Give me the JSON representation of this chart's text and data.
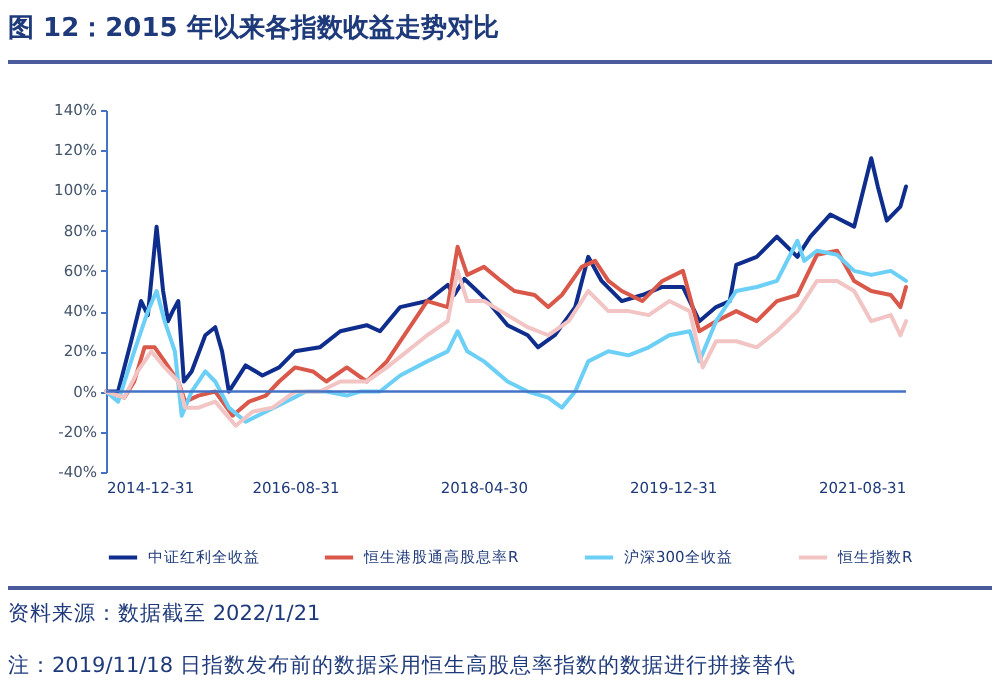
{
  "chart_data": {
    "type": "line",
    "title": "图 12：2015 年以来各指数收益走势对比",
    "annotations": [
      "资料来源：数据截至 2022/1/21",
      "注：2019/11/18 日指数发布前的数据采用恒生高股息率指数的数据进行拼接替代"
    ],
    "xlim": [
      "2014-12-31",
      "2022-01-21"
    ],
    "xticks": [
      "2014-12-31",
      "2016-08-31",
      "2018-04-30",
      "2019-12-31",
      "2021-08-31"
    ],
    "ylim": [
      -40,
      140
    ],
    "yticks": [
      {
        "value": -40,
        "label": "-40%"
      },
      {
        "value": -20,
        "label": "-20%"
      },
      {
        "value": 0,
        "label": "0%"
      },
      {
        "value": 20,
        "label": "20%"
      },
      {
        "value": 40,
        "label": "40%"
      },
      {
        "value": 60,
        "label": "60%"
      },
      {
        "value": 80,
        "label": "80%"
      },
      {
        "value": 100,
        "label": "100%"
      },
      {
        "value": 120,
        "label": "120%"
      },
      {
        "value": 140,
        "label": "140%"
      }
    ],
    "ref_lines": [
      {
        "axis": "y",
        "value": 0,
        "color": "#4472c4"
      }
    ],
    "grid": false,
    "legend": "bottom",
    "line_style": "solid",
    "series": [
      {
        "name": "中证红利全收益",
        "color": "#0f2d8c",
        "x": [
          "2014-12-31",
          "2015-02-08",
          "2015-03-22",
          "2015-04-23",
          "2015-05-15",
          "2015-06-12",
          "2015-07-03",
          "2015-07-19",
          "2015-08-03",
          "2015-08-21",
          "2015-09-08",
          "2015-10-03",
          "2015-11-16",
          "2015-12-18",
          "2016-01-09",
          "2016-01-31",
          "2016-03-25",
          "2016-05-18",
          "2016-07-11",
          "2016-08-31",
          "2016-11-19",
          "2017-01-24",
          "2017-04-19",
          "2017-06-01",
          "2017-08-05",
          "2017-10-31",
          "2018-01-05",
          "2018-01-26",
          "2018-02-28",
          "2018-04-10",
          "2018-05-13",
          "2018-07-17",
          "2018-09-20",
          "2018-10-23",
          "2018-12-16",
          "2019-02-20",
          "2019-04-03",
          "2019-05-16",
          "2019-07-20",
          "2019-09-24",
          "2019-11-28",
          "2020-02-02",
          "2020-03-26",
          "2020-05-19",
          "2020-07-02",
          "2020-07-23",
          "2020-09-27",
          "2020-12-01",
          "2021-02-05",
          "2021-03-19",
          "2021-05-22",
          "2021-08-07",
          "2021-10-01",
          "2021-10-22",
          "2021-11-20",
          "2022-01-03",
          "2022-01-21"
        ],
        "values": [
          0,
          0,
          25,
          45,
          38,
          82,
          50,
          35,
          40,
          45,
          5,
          10,
          28,
          32,
          20,
          0,
          13,
          8,
          12,
          20,
          22,
          30,
          33,
          30,
          42,
          45,
          53,
          48,
          56,
          50,
          45,
          33,
          28,
          22,
          28,
          42,
          67,
          55,
          45,
          48,
          52,
          52,
          35,
          42,
          45,
          63,
          67,
          77,
          67,
          77,
          88,
          82,
          116,
          102,
          85,
          92,
          102
        ]
      },
      {
        "name": "恒生港股通高股息率R",
        "color": "#d9584a",
        "x": [
          "2014-12-31",
          "2015-02-28",
          "2015-04-01",
          "2015-05-04",
          "2015-06-06",
          "2015-07-08",
          "2015-08-21",
          "2015-09-12",
          "2015-10-25",
          "2015-12-18",
          "2016-02-12",
          "2016-04-05",
          "2016-05-29",
          "2016-07-11",
          "2016-08-31",
          "2016-10-28",
          "2016-12-10",
          "2017-02-14",
          "2017-04-19",
          "2017-06-23",
          "2017-08-05",
          "2017-09-18",
          "2017-10-31",
          "2018-01-05",
          "2018-02-06",
          "2018-03-09",
          "2018-05-02",
          "2018-06-26",
          "2018-08-08",
          "2018-10-12",
          "2018-11-25",
          "2019-01-08",
          "2019-03-13",
          "2019-04-25",
          "2019-06-07",
          "2019-07-20",
          "2019-09-24",
          "2019-11-28",
          "2020-02-02",
          "2020-03-26",
          "2020-05-19",
          "2020-07-23",
          "2020-09-27",
          "2020-12-01",
          "2021-02-05",
          "2021-04-09",
          "2021-06-13",
          "2021-08-07",
          "2021-10-01",
          "2021-12-03",
          "2022-01-03",
          "2022-01-21"
        ],
        "values": [
          0,
          -3,
          5,
          22,
          22,
          15,
          5,
          -5,
          -2,
          0,
          -12,
          -5,
          -2,
          5,
          12,
          10,
          5,
          12,
          5,
          15,
          25,
          35,
          45,
          42,
          72,
          58,
          62,
          55,
          50,
          48,
          42,
          48,
          62,
          65,
          55,
          50,
          45,
          55,
          60,
          30,
          35,
          40,
          35,
          45,
          48,
          68,
          70,
          55,
          50,
          48,
          42,
          52
        ]
      },
      {
        "name": "沪深300全收益",
        "color": "#6ccff6",
        "x": [
          "2014-12-31",
          "2015-02-08",
          "2015-04-01",
          "2015-05-15",
          "2015-06-12",
          "2015-07-08",
          "2015-08-10",
          "2015-09-01",
          "2015-10-03",
          "2015-11-16",
          "2015-12-18",
          "2016-01-31",
          "2016-03-25",
          "2016-05-29",
          "2016-08-02",
          "2016-10-06",
          "2016-12-10",
          "2017-02-14",
          "2017-03-28",
          "2017-06-01",
          "2017-08-05",
          "2017-10-31",
          "2018-01-05",
          "2018-02-06",
          "2018-03-09",
          "2018-05-02",
          "2018-07-17",
          "2018-09-20",
          "2018-11-25",
          "2019-01-08",
          "2019-02-20",
          "2019-04-03",
          "2019-06-07",
          "2019-08-11",
          "2019-10-15",
          "2019-12-20",
          "2020-02-24",
          "2020-03-26",
          "2020-05-19",
          "2020-07-23",
          "2020-09-27",
          "2020-12-01",
          "2021-02-05",
          "2021-02-27",
          "2021-04-09",
          "2021-06-13",
          "2021-08-07",
          "2021-10-01",
          "2021-12-03",
          "2022-01-21"
        ],
        "values": [
          0,
          -5,
          20,
          40,
          50,
          35,
          20,
          -12,
          0,
          10,
          5,
          -8,
          -15,
          -10,
          -5,
          0,
          0,
          -2,
          0,
          0,
          8,
          15,
          20,
          30,
          20,
          15,
          5,
          0,
          -3,
          -8,
          0,
          15,
          20,
          18,
          22,
          28,
          30,
          15,
          35,
          50,
          52,
          55,
          75,
          65,
          70,
          68,
          60,
          58,
          60,
          55
        ]
      },
      {
        "name": "恒生指数R",
        "color": "#f2c4c4",
        "x": [
          "2014-12-31",
          "2015-02-28",
          "2015-04-12",
          "2015-05-26",
          "2015-07-08",
          "2015-08-21",
          "2015-09-12",
          "2015-10-25",
          "2015-12-18",
          "2016-02-22",
          "2016-04-16",
          "2016-06-20",
          "2016-08-31",
          "2016-11-19",
          "2017-01-24",
          "2017-04-19",
          "2017-06-23",
          "2017-08-27",
          "2017-10-31",
          "2018-01-05",
          "2018-02-06",
          "2018-03-09",
          "2018-05-02",
          "2018-07-17",
          "2018-09-20",
          "2018-11-25",
          "2019-01-30",
          "2019-04-03",
          "2019-06-07",
          "2019-08-11",
          "2019-10-15",
          "2019-12-20",
          "2020-02-24",
          "2020-04-06",
          "2020-05-19",
          "2020-07-23",
          "2020-09-27",
          "2020-12-01",
          "2021-02-05",
          "2021-04-09",
          "2021-06-13",
          "2021-08-07",
          "2021-10-01",
          "2021-12-03",
          "2022-01-03",
          "2022-01-21"
        ],
        "values": [
          0,
          -3,
          10,
          20,
          12,
          5,
          -8,
          -8,
          -5,
          -17,
          -10,
          -8,
          0,
          0,
          5,
          5,
          12,
          20,
          28,
          35,
          60,
          45,
          45,
          38,
          32,
          28,
          35,
          50,
          40,
          40,
          38,
          45,
          40,
          12,
          25,
          25,
          22,
          30,
          40,
          55,
          55,
          50,
          35,
          38,
          28,
          35
        ]
      }
    ]
  }
}
